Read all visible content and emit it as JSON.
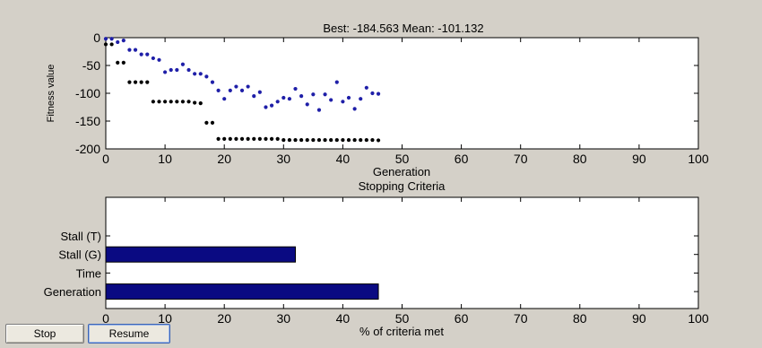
{
  "top_chart": {
    "title": "Best: -184.563 Mean: -101.132",
    "xlabel": "Generation",
    "ylabel": "Fitness value"
  },
  "bottom_chart": {
    "title": "Stopping Criteria",
    "xlabel": "% of criteria met"
  },
  "buttons": {
    "stop": "Stop",
    "resume": "Resume"
  },
  "colors": {
    "best": "#000000",
    "mean": "#1f1fa8",
    "bar": "#0a0a82",
    "background": "#d4d0c8",
    "axes": "#ffffff"
  },
  "chart_data": [
    {
      "type": "scatter",
      "title": "Best: -184.563 Mean: -101.132",
      "xlabel": "Generation",
      "ylabel": "Fitness value",
      "xlim": [
        0,
        100
      ],
      "ylim": [
        -200,
        0
      ],
      "xticks": [
        0,
        10,
        20,
        30,
        40,
        50,
        60,
        70,
        80,
        90,
        100
      ],
      "yticks": [
        0,
        -50,
        -100,
        -150,
        -200
      ],
      "series": [
        {
          "color": "#000000",
          "x": [
            0,
            1,
            2,
            3,
            4,
            5,
            6,
            7,
            8,
            9,
            10,
            11,
            12,
            13,
            14,
            15,
            16,
            17,
            18,
            19,
            20,
            21,
            22,
            23,
            24,
            25,
            26,
            27,
            28,
            29,
            30,
            31,
            32,
            33,
            34,
            35,
            36,
            37,
            38,
            39,
            40,
            41,
            42,
            43,
            44,
            45,
            46
          ],
          "y": [
            -12,
            -12,
            -45,
            -45,
            -80,
            -80,
            -80,
            -80,
            -115,
            -115,
            -115,
            -115,
            -115,
            -115,
            -115,
            -117,
            -118,
            -153,
            -153,
            -182,
            -182,
            -182,
            -182,
            -182,
            -182,
            -182,
            -182,
            -182,
            -182,
            -182,
            -184,
            -184,
            -184,
            -184,
            -184,
            -184,
            -184,
            -184,
            -184,
            -184,
            -184,
            -184,
            -184,
            -184,
            -184,
            -184,
            -184.563
          ]
        },
        {
          "color": "#1f1fa8",
          "x": [
            0,
            1,
            2,
            3,
            4,
            5,
            6,
            7,
            8,
            9,
            10,
            11,
            12,
            13,
            14,
            15,
            16,
            17,
            18,
            19,
            20,
            21,
            22,
            23,
            24,
            25,
            26,
            27,
            28,
            29,
            30,
            31,
            32,
            33,
            34,
            35,
            36,
            37,
            38,
            39,
            40,
            41,
            42,
            43,
            44,
            45,
            46
          ],
          "y": [
            -2,
            -2,
            -8,
            -5,
            -22,
            -22,
            -30,
            -30,
            -37,
            -40,
            -62,
            -58,
            -58,
            -48,
            -58,
            -65,
            -65,
            -70,
            -80,
            -95,
            -110,
            -95,
            -88,
            -95,
            -88,
            -105,
            -98,
            -125,
            -122,
            -115,
            -108,
            -110,
            -92,
            -105,
            -120,
            -102,
            -130,
            -102,
            -112,
            -80,
            -115,
            -108,
            -128,
            -110,
            -90,
            -100,
            -101
          ]
        }
      ]
    },
    {
      "type": "bar",
      "orientation": "horizontal",
      "title": "Stopping Criteria",
      "xlabel": "% of criteria met",
      "xlim": [
        0,
        100
      ],
      "xticks": [
        0,
        10,
        20,
        30,
        40,
        50,
        60,
        70,
        80,
        90,
        100
      ],
      "categories": [
        "Stall (T)",
        "Stall (G)",
        "Time",
        "Generation"
      ],
      "values": [
        0,
        32,
        0,
        46
      ]
    }
  ]
}
